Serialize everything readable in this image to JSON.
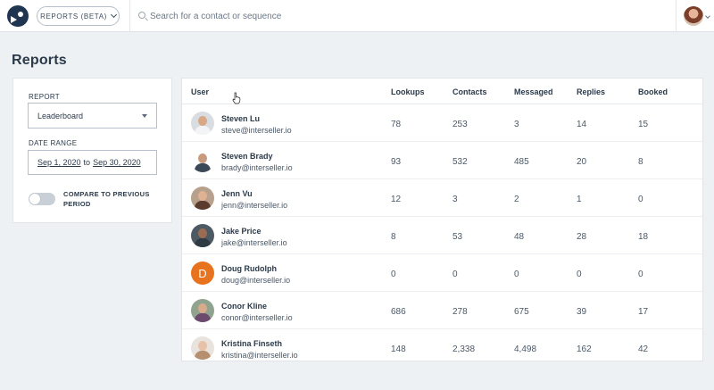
{
  "header": {
    "reports_button_label": "REPORTS (BETA)",
    "search_placeholder": "Search for a contact or sequence"
  },
  "page": {
    "title": "Reports"
  },
  "filters": {
    "report_label": "REPORT",
    "report_value": "Leaderboard",
    "date_range_label": "DATE RANGE",
    "date_start": "Sep 1, 2020",
    "date_to": "to",
    "date_end": "Sep 30, 2020",
    "compare_label": "COMPARE TO PREVIOUS PERIOD",
    "compare_enabled": false
  },
  "table": {
    "columns": [
      "User",
      "Lookups",
      "Contacts",
      "Messaged",
      "Replies",
      "Booked"
    ],
    "rows": [
      {
        "name": "Steven Lu",
        "email": "steve@interseller.io",
        "lookups": "78",
        "contacts": "253",
        "messaged": "3",
        "replies": "14",
        "booked": "15"
      },
      {
        "name": "Steven Brady",
        "email": "brady@interseller.io",
        "lookups": "93",
        "contacts": "532",
        "messaged": "485",
        "replies": "20",
        "booked": "8"
      },
      {
        "name": "Jenn Vu",
        "email": "jenn@interseller.io",
        "lookups": "12",
        "contacts": "3",
        "messaged": "2",
        "replies": "1",
        "booked": "0"
      },
      {
        "name": "Jake Price",
        "email": "jake@interseller.io",
        "lookups": "8",
        "contacts": "53",
        "messaged": "48",
        "replies": "28",
        "booked": "18"
      },
      {
        "name": "Doug Rudolph",
        "email": "doug@interseller.io",
        "initial": "D",
        "lookups": "0",
        "contacts": "0",
        "messaged": "0",
        "replies": "0",
        "booked": "0"
      },
      {
        "name": "Conor Kline",
        "email": "conor@interseller.io",
        "lookups": "686",
        "contacts": "278",
        "messaged": "675",
        "replies": "39",
        "booked": "17"
      },
      {
        "name": "Kristina Finseth",
        "email": "kristina@interseller.io",
        "lookups": "148",
        "contacts": "2,338",
        "messaged": "4,498",
        "replies": "162",
        "booked": "42"
      }
    ]
  },
  "colors": {
    "logo": "#1f3550",
    "doug_avatar": "#e8731f"
  }
}
